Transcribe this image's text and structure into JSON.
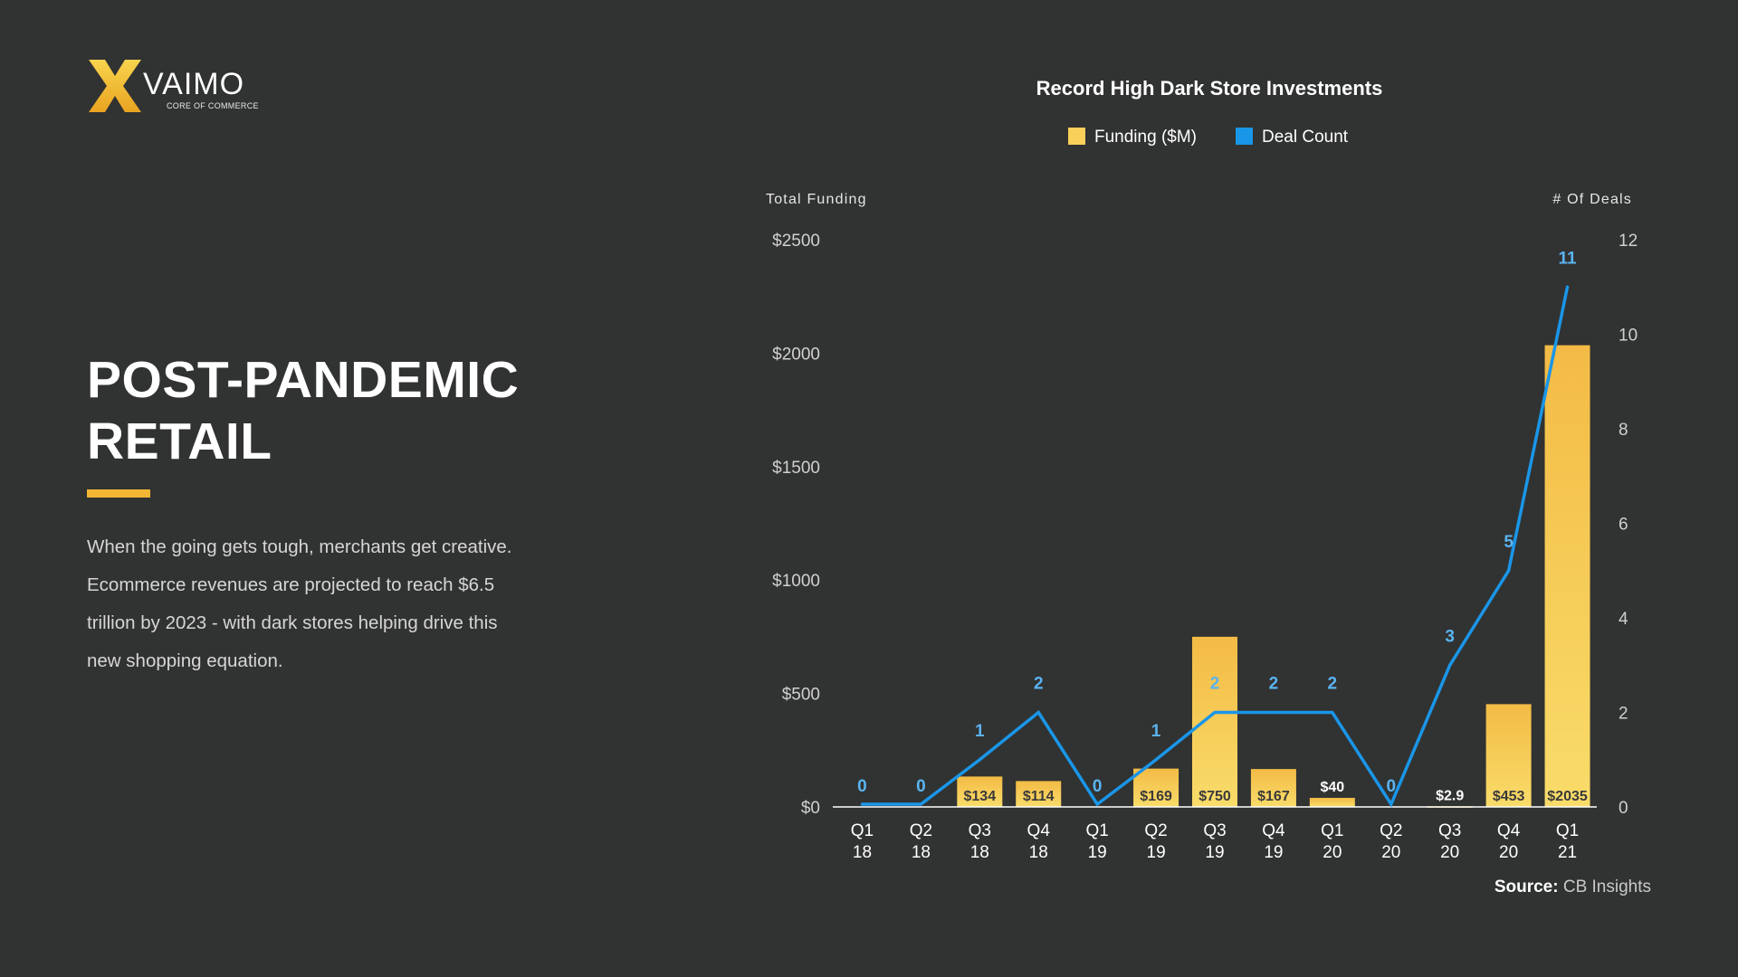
{
  "brand": {
    "name": "VAIMO",
    "tagline": "CORE OF COMMERCE"
  },
  "headline": {
    "line1": "POST-PANDEMIC",
    "line2": "RETAIL"
  },
  "body": {
    "line1": "When the going gets tough, merchants get creative.",
    "line2": "Ecommerce revenues are projected to reach $6.5",
    "line3": "trillion by 2023 - with dark stores helping drive this",
    "line4": "new shopping equation."
  },
  "source": {
    "label": "Source:",
    "value": "CB Insights"
  },
  "colors": {
    "background": "#313232",
    "accent": "#f2b534",
    "funding_bar_top": "#f3bb45",
    "funding_bar_bottom": "#f9dc6a",
    "deal_line": "#1a96e8",
    "deal_label": "#5ab4f0"
  },
  "chart_data": {
    "type": "bar",
    "title": "Record High Dark Store Investments",
    "categories": [
      "Q1 18",
      "Q2 18",
      "Q3 18",
      "Q4 18",
      "Q1 19",
      "Q2 19",
      "Q3 19",
      "Q4 19",
      "Q1 20",
      "Q2 20",
      "Q3 20",
      "Q4 20",
      "Q1 21"
    ],
    "category_lines": [
      [
        "Q1",
        "18"
      ],
      [
        "Q2",
        "18"
      ],
      [
        "Q3",
        "18"
      ],
      [
        "Q4",
        "18"
      ],
      [
        "Q1",
        "19"
      ],
      [
        "Q2",
        "19"
      ],
      [
        "Q3",
        "19"
      ],
      [
        "Q4",
        "19"
      ],
      [
        "Q1",
        "20"
      ],
      [
        "Q2",
        "20"
      ],
      [
        "Q3",
        "20"
      ],
      [
        "Q4",
        "20"
      ],
      [
        "Q1",
        "21"
      ]
    ],
    "series": [
      {
        "name": "Funding ($M)",
        "type": "bar",
        "axis": "left",
        "values": [
          0,
          0,
          134,
          114,
          0,
          169,
          750,
          167,
          40,
          0,
          2.9,
          453,
          2035
        ],
        "labels": [
          "",
          "",
          "$134",
          "$114",
          "",
          "$169",
          "$750",
          "$167",
          "$40",
          "",
          "$2.9",
          "$453",
          "$2035"
        ]
      },
      {
        "name": "Deal Count",
        "type": "line",
        "axis": "right",
        "values": [
          0,
          0,
          1,
          2,
          0,
          1,
          2,
          2,
          2,
          0,
          3,
          5,
          11
        ]
      }
    ],
    "ylabel": "Total Funding",
    "y2label": "# Of Deals",
    "ylim": [
      0,
      2500
    ],
    "y2lim": [
      0,
      12
    ],
    "yticks": [
      0,
      500,
      1000,
      1500,
      2000,
      2500
    ],
    "ytick_labels": [
      "$0",
      "$500",
      "$1000",
      "$1500",
      "$2000",
      "$2500"
    ],
    "y2ticks": [
      0,
      2,
      4,
      6,
      8,
      10,
      12
    ],
    "y2tick_labels": [
      "0",
      "2",
      "4",
      "6",
      "8",
      "10",
      "12"
    ],
    "legend": "top-center",
    "grid": false
  }
}
